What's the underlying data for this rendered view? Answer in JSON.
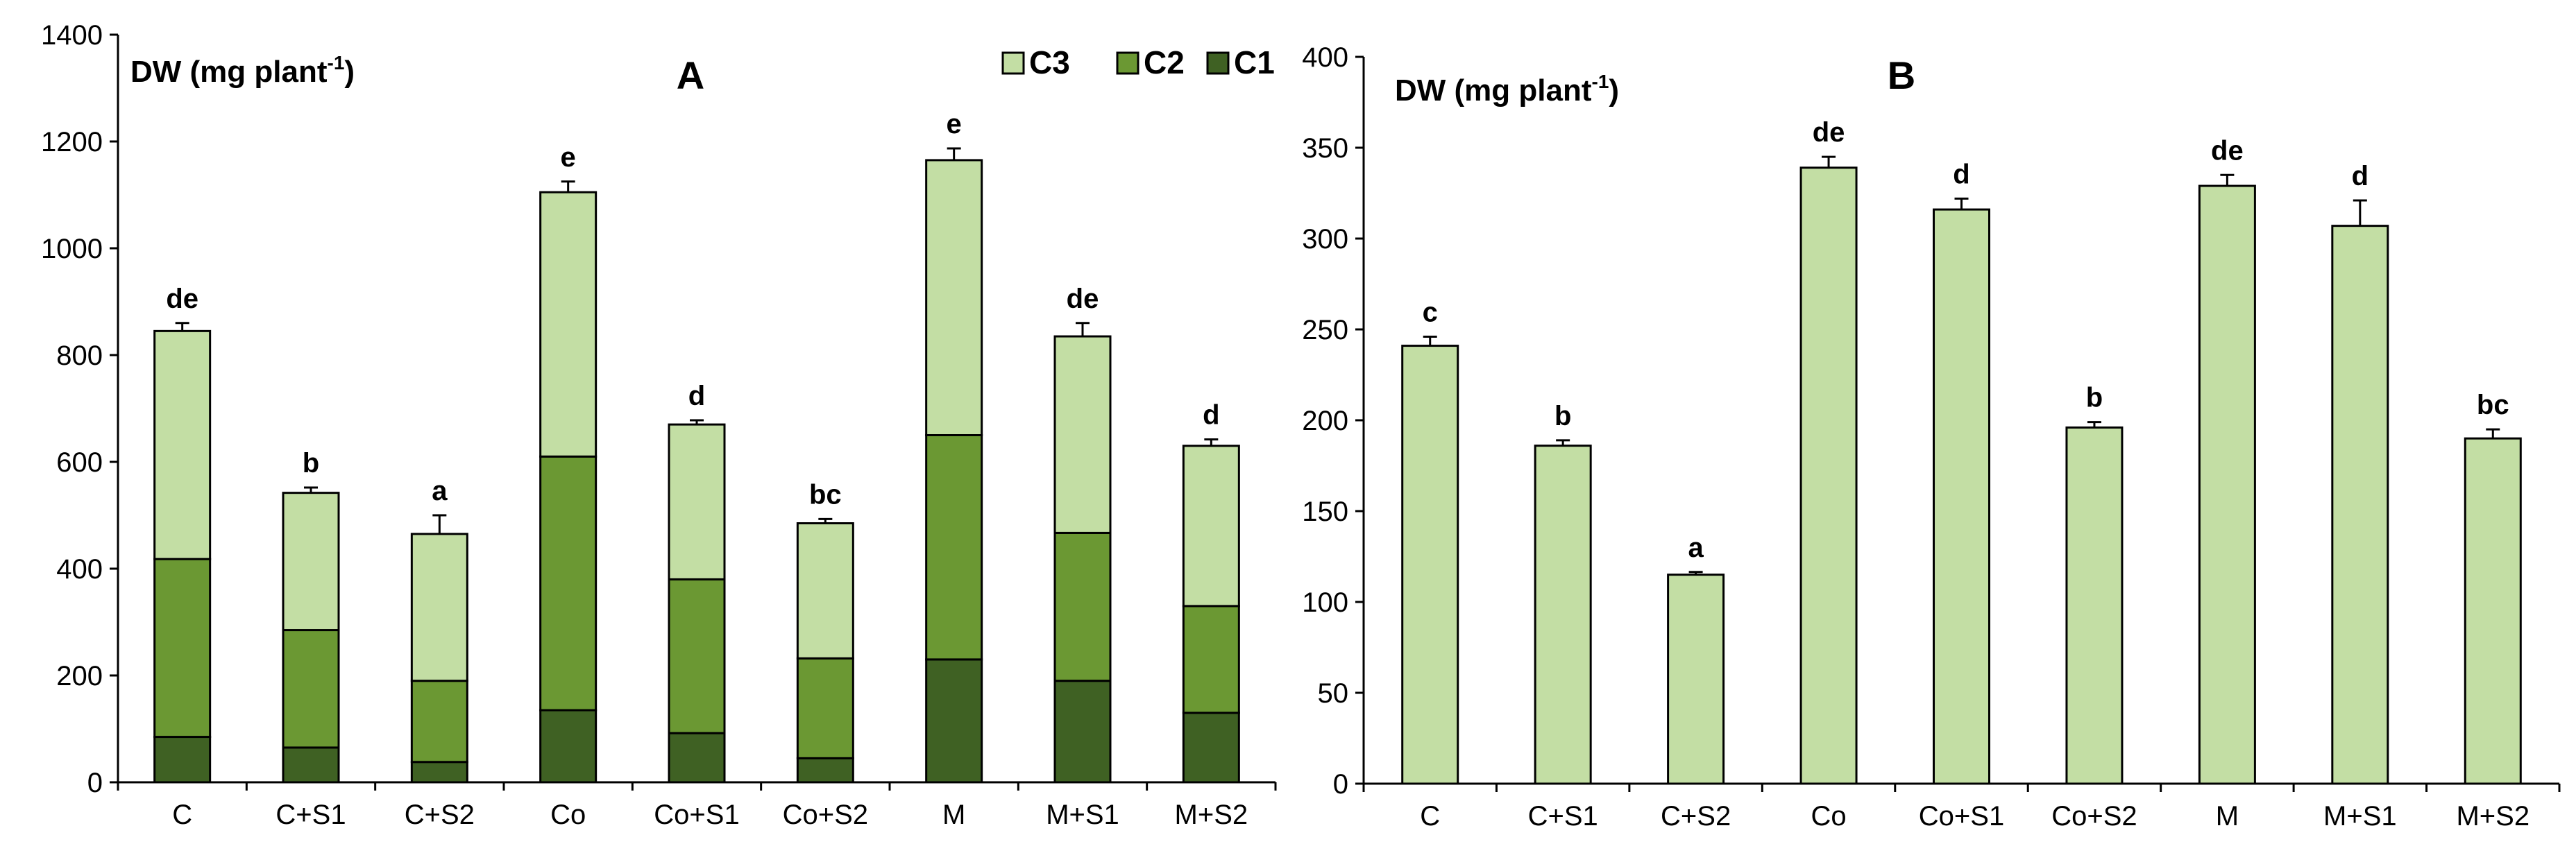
{
  "chart_data": [
    {
      "type": "bar",
      "stacked": true,
      "title": "A",
      "ylabel_main": "DW (mg plant",
      "ylabel_sup": "-1",
      "ylabel_close": ")",
      "xlabel": "",
      "ylim": [
        0,
        1400
      ],
      "yticks": [
        0,
        200,
        400,
        600,
        800,
        1000,
        1200,
        1400
      ],
      "categories": [
        "C",
        "C+S1",
        "C+S2",
        "Co",
        "Co+S1",
        "Co+S2",
        "M",
        "M+S1",
        "M+S2"
      ],
      "series": [
        {
          "name": "C1",
          "color": "#3f6123",
          "values": [
            85,
            65,
            38,
            135,
            92,
            45,
            230,
            190,
            130
          ]
        },
        {
          "name": "C2",
          "color": "#6b9833",
          "values": [
            333,
            220,
            152,
            475,
            288,
            187,
            420,
            277,
            200
          ]
        },
        {
          "name": "C3",
          "color": "#c3dea4",
          "values": [
            427,
            257,
            275,
            495,
            290,
            253,
            515,
            368,
            300
          ]
        }
      ],
      "errors": [
        15,
        10,
        35,
        20,
        8,
        8,
        22,
        25,
        12
      ],
      "significance": [
        "de",
        "b",
        "a",
        "e",
        "d",
        "bc",
        "e",
        "de",
        "d"
      ],
      "legend": [
        "C3",
        "C2",
        "C1"
      ],
      "legend_position": "top-right"
    },
    {
      "type": "bar",
      "stacked": false,
      "title": "B",
      "ylabel_main": "DW (mg plant",
      "ylabel_sup": "-1",
      "ylabel_close": ")",
      "xlabel": "",
      "ylim": [
        0,
        400
      ],
      "yticks": [
        0,
        50,
        100,
        150,
        200,
        250,
        300,
        350,
        400
      ],
      "categories": [
        "C",
        "C+S1",
        "C+S2",
        "Co",
        "Co+S1",
        "Co+S2",
        "M",
        "M+S1",
        "M+S2"
      ],
      "series": [
        {
          "name": "DW",
          "color": "#c3dea4",
          "values": [
            241,
            186,
            115,
            339,
            316,
            196,
            329,
            307,
            190
          ]
        }
      ],
      "errors": [
        5,
        3,
        1.5,
        6,
        6,
        3,
        6,
        14,
        5
      ],
      "significance": [
        "c",
        "b",
        "a",
        "de",
        "d",
        "b",
        "de",
        "d",
        "bc"
      ]
    }
  ]
}
